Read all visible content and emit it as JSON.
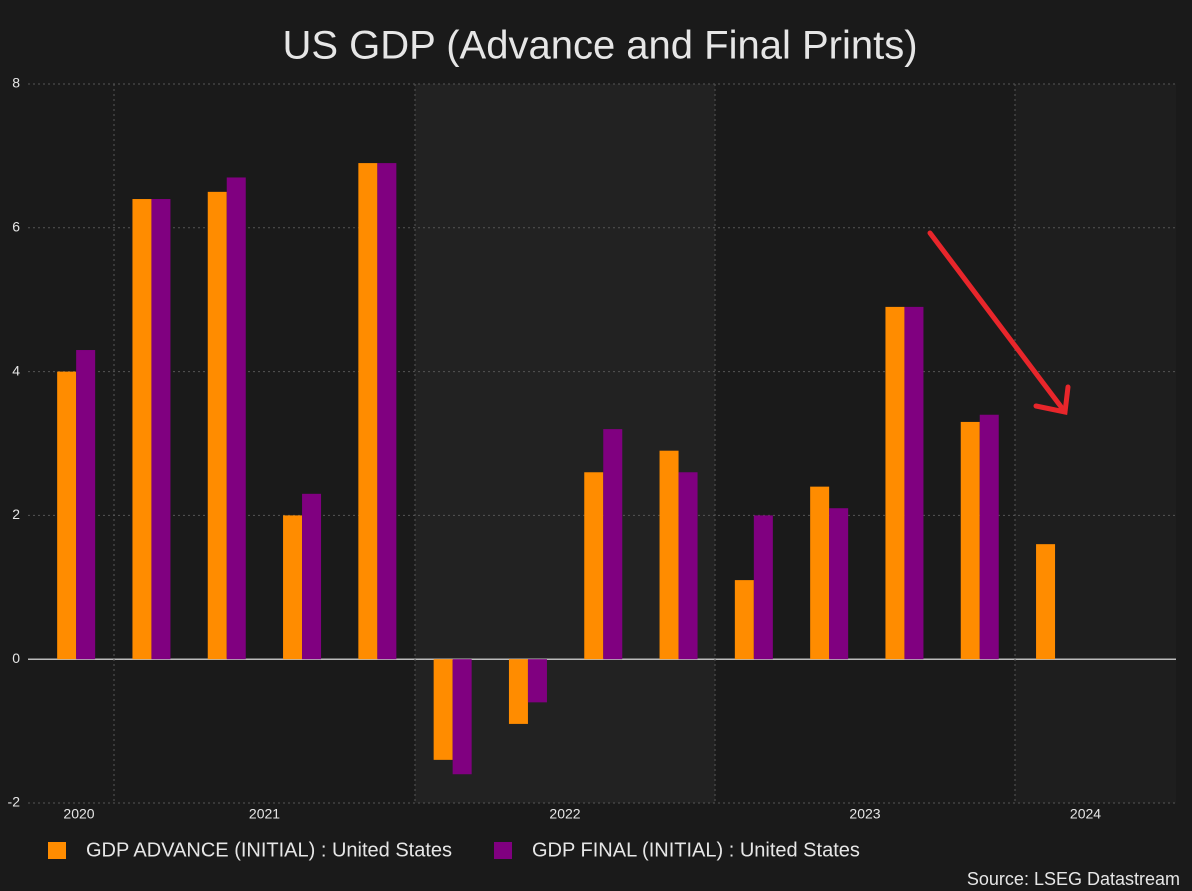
{
  "chart_data": {
    "type": "bar",
    "title": "US GDP (Advance and Final Prints)",
    "source": "Source: LSEG Datastream",
    "categories": [
      null,
      null,
      null,
      null,
      null,
      null,
      null,
      null,
      null,
      null,
      null,
      null,
      null,
      null
    ],
    "x_labels": [
      "2020",
      "2021",
      "2022",
      "2023",
      "2024"
    ],
    "series": [
      {
        "name": "GDP ADVANCE (INITIAL) : United States",
        "color": "#ff8c00",
        "values": [
          4.0,
          6.4,
          6.5,
          2.0,
          6.9,
          -1.4,
          -0.9,
          2.6,
          2.9,
          1.1,
          2.4,
          4.9,
          3.3,
          1.6
        ]
      },
      {
        "name": "GDP FINAL (INITIAL) : United States",
        "color": "#800080",
        "values": [
          4.3,
          6.4,
          6.7,
          2.3,
          6.9,
          -1.6,
          -0.6,
          3.2,
          2.6,
          2.0,
          2.1,
          4.9,
          3.4,
          null
        ]
      }
    ],
    "ylim": [
      -2,
      8
    ],
    "yticks": [
      -2,
      0,
      2,
      4,
      6,
      8
    ],
    "grid": true
  }
}
